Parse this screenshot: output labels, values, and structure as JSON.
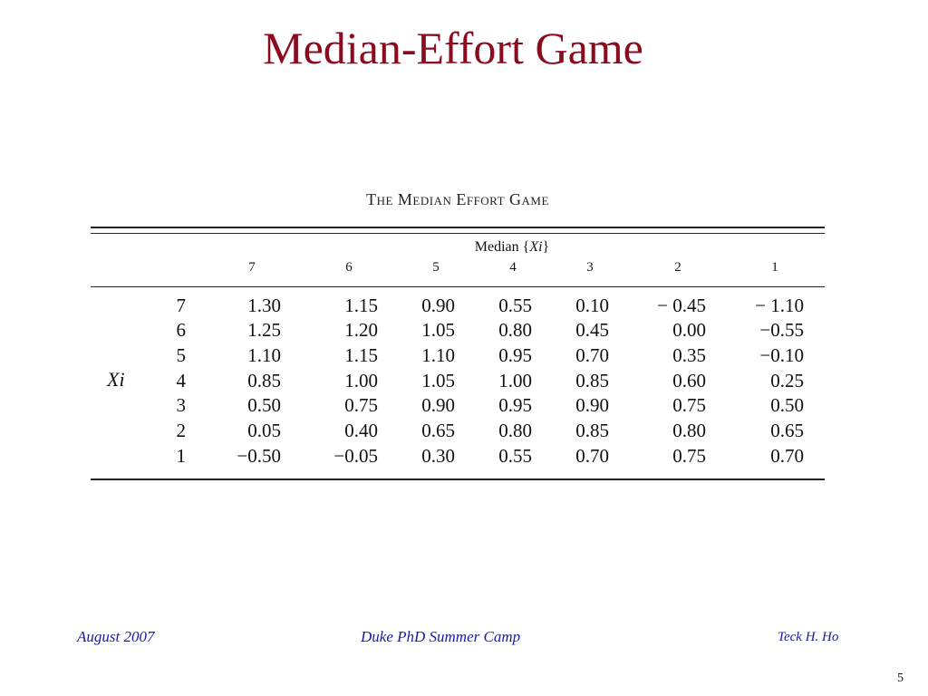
{
  "slide": {
    "title": "Median-Effort Game",
    "page_number": "5"
  },
  "table": {
    "caption": "The Median Effort Game",
    "header_median_prefix": "Median {",
    "header_median_var": "Xi",
    "header_median_suffix": "}",
    "row_variable": "Xi",
    "columns": [
      "7",
      "6",
      "5",
      "4",
      "3",
      "2",
      "1"
    ],
    "rows": [
      {
        "label": "7",
        "values": [
          "1.30",
          "1.15",
          "0.90",
          "0.55",
          "0.10",
          "− 0.45",
          "− 1.10"
        ]
      },
      {
        "label": "6",
        "values": [
          "1.25",
          "1.20",
          "1.05",
          "0.80",
          "0.45",
          "0.00",
          "−0.55"
        ]
      },
      {
        "label": "5",
        "values": [
          "1.10",
          "1.15",
          "1.10",
          "0.95",
          "0.70",
          "0.35",
          "−0.10"
        ]
      },
      {
        "label": "4",
        "values": [
          "0.85",
          "1.00",
          "1.05",
          "1.00",
          "0.85",
          "0.60",
          "0.25"
        ]
      },
      {
        "label": "3",
        "values": [
          "0.50",
          "0.75",
          "0.90",
          "0.95",
          "0.90",
          "0.75",
          "0.50"
        ]
      },
      {
        "label": "2",
        "values": [
          "0.05",
          "0.40",
          "0.65",
          "0.80",
          "0.85",
          "0.80",
          "0.65"
        ]
      },
      {
        "label": "1",
        "values": [
          "−0.50",
          "−0.05",
          "0.30",
          "0.55",
          "0.70",
          "0.75",
          "0.70"
        ]
      }
    ]
  },
  "footer": {
    "date": "August 2007",
    "event": "Duke PhD Summer Camp",
    "author": "Teck H. Ho"
  },
  "colors": {
    "title": "#8b0a1e",
    "footer": "#1a1aa0"
  }
}
